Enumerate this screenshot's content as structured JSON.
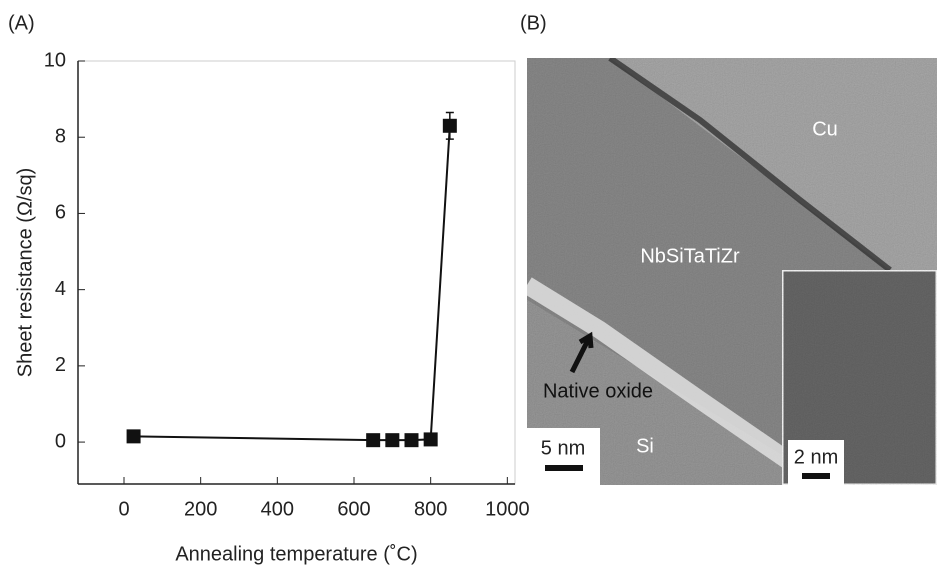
{
  "chart_data": {
    "type": "scatter",
    "title": "(A)",
    "x_label": "Annealing temperature (˚C)",
    "y_label": "Sheet resistance (Ω/sq)",
    "x": [
      25,
      650,
      700,
      750,
      800,
      850
    ],
    "y": [
      0.15,
      0.05,
      0.05,
      0.05,
      0.07,
      8.3
    ],
    "errors": [
      0.15,
      0.1,
      0.1,
      0.1,
      0.1,
      0.35
    ],
    "color": "#111111",
    "line": true,
    "xlim": [
      -120,
      1020
    ],
    "ylim": [
      -1.1,
      10
    ],
    "xticks": [
      0,
      200,
      400,
      600,
      800,
      1000
    ],
    "yticks": [
      0,
      2,
      4,
      6,
      8,
      10
    ]
  },
  "image_panel": {
    "label": "(B)",
    "regions": [
      "Cu",
      "NbSiTaTiZr",
      "Native oxide",
      "Si"
    ],
    "scale_bar": "5 nm",
    "inset_scale_bar": "2 nm"
  }
}
